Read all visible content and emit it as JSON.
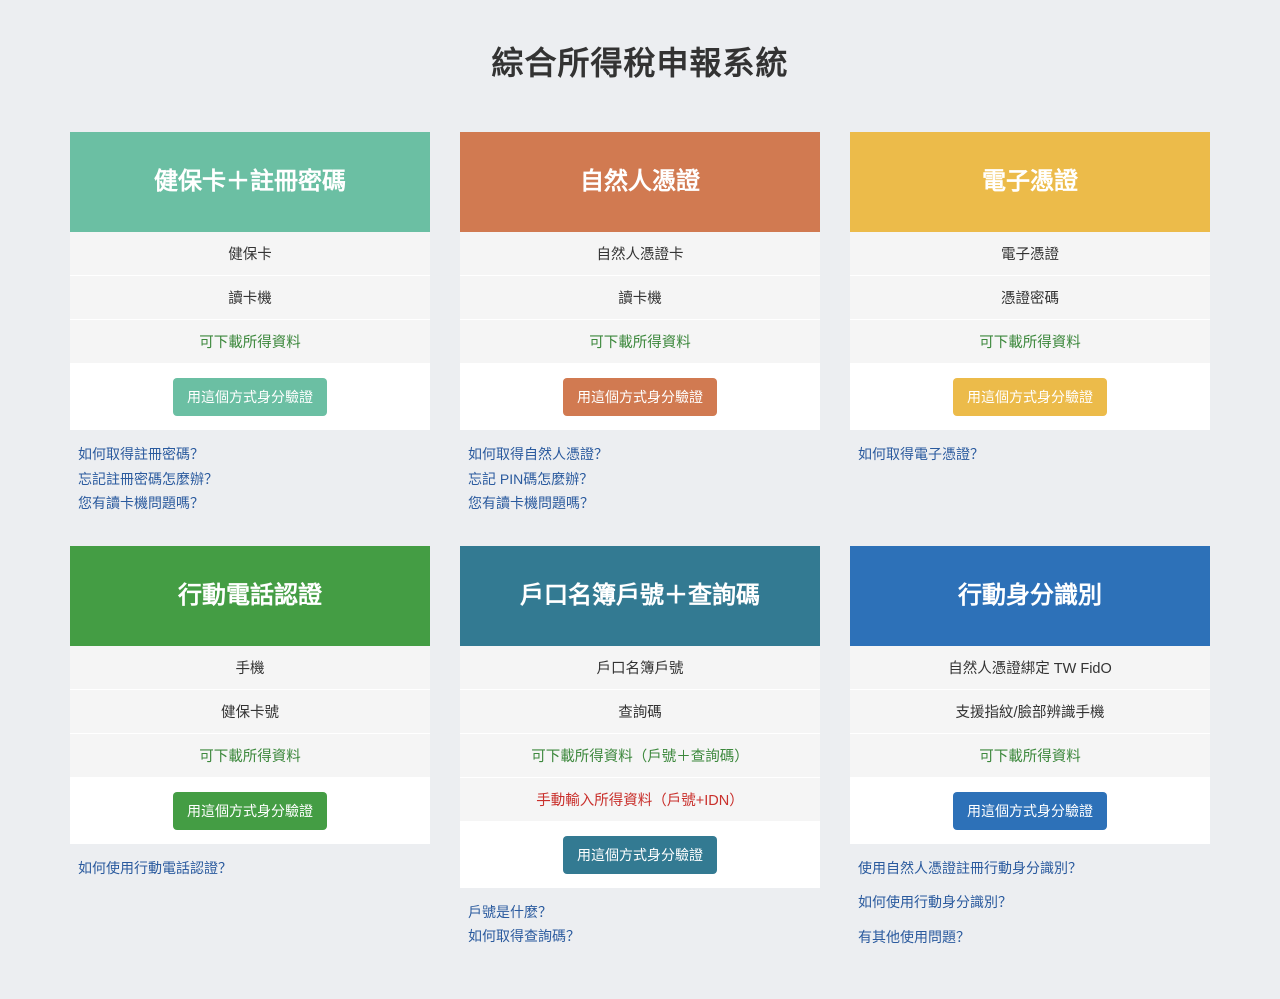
{
  "pageTitle": "綜合所得稅申報系統",
  "colors": {
    "bg": "#eceef1",
    "helpLink": "#2a5a9e",
    "green": "#3c883c",
    "red": "#c9302c"
  },
  "cards": [
    {
      "id": "health-card",
      "title": "健保卡＋註冊密碼",
      "headerColor": "#6bbfa3",
      "buttonColor": "#6bbfa3",
      "requirements": [
        {
          "text": "健保卡",
          "style": "plain"
        },
        {
          "text": "讀卡機",
          "style": "plain"
        },
        {
          "text": "可下載所得資料",
          "style": "green"
        }
      ],
      "buttonLabel": "用這個方式身分驗證",
      "helpLinks": [
        "如何取得註冊密碼？",
        "忘記註冊密碼怎麼辦？",
        "您有讀卡機問題嗎？"
      ],
      "helpSpaced": false
    },
    {
      "id": "natural-person-cert",
      "title": "自然人憑證",
      "headerColor": "#d17a51",
      "buttonColor": "#d17a51",
      "requirements": [
        {
          "text": "自然人憑證卡",
          "style": "plain"
        },
        {
          "text": "讀卡機",
          "style": "plain"
        },
        {
          "text": "可下載所得資料",
          "style": "green"
        }
      ],
      "buttonLabel": "用這個方式身分驗證",
      "helpLinks": [
        "如何取得自然人憑證？",
        "忘記 PIN碼怎麼辦？",
        "您有讀卡機問題嗎？"
      ],
      "helpSpaced": false
    },
    {
      "id": "electronic-cert",
      "title": "電子憑證",
      "headerColor": "#ecbb4a",
      "buttonColor": "#ecbb4a",
      "requirements": [
        {
          "text": "電子憑證",
          "style": "plain"
        },
        {
          "text": "憑證密碼",
          "style": "plain"
        },
        {
          "text": "可下載所得資料",
          "style": "green"
        }
      ],
      "buttonLabel": "用這個方式身分驗證",
      "helpLinks": [
        "如何取得電子憑證？"
      ],
      "helpSpaced": false
    },
    {
      "id": "mobile-phone",
      "title": "行動電話認證",
      "headerColor": "#449d44",
      "buttonColor": "#449d44",
      "requirements": [
        {
          "text": "手機",
          "style": "plain"
        },
        {
          "text": "健保卡號",
          "style": "plain"
        },
        {
          "text": "可下載所得資料",
          "style": "green"
        }
      ],
      "buttonLabel": "用這個方式身分驗證",
      "helpLinks": [
        "如何使用行動電話認證？"
      ],
      "helpSpaced": false
    },
    {
      "id": "household-registry",
      "title": "戶口名簿戶號＋查詢碼",
      "headerColor": "#337a92",
      "buttonColor": "#337a92",
      "requirements": [
        {
          "text": "戶口名簿戶號",
          "style": "plain"
        },
        {
          "text": "查詢碼",
          "style": "plain"
        },
        {
          "text": "可下載所得資料（戶號＋查詢碼）",
          "style": "green"
        },
        {
          "text": "手動輸入所得資料（戶號+IDN）",
          "style": "red"
        }
      ],
      "buttonLabel": "用這個方式身分驗證",
      "helpLinks": [
        "戶號是什麼？",
        "如何取得查詢碼？"
      ],
      "helpSpaced": false
    },
    {
      "id": "mobile-id",
      "title": "行動身分識別",
      "headerColor": "#2d71b8",
      "buttonColor": "#2d71b8",
      "requirements": [
        {
          "text": "自然人憑證綁定 TW FidO",
          "style": "plain"
        },
        {
          "text": "支援指紋/臉部辨識手機",
          "style": "plain"
        },
        {
          "text": "可下載所得資料",
          "style": "green"
        }
      ],
      "buttonLabel": "用這個方式身分驗證",
      "helpLinks": [
        "使用自然人憑證註冊行動身分識別？",
        "如何使用行動身分識別？",
        "有其他使用問題？"
      ],
      "helpSpaced": true
    }
  ]
}
